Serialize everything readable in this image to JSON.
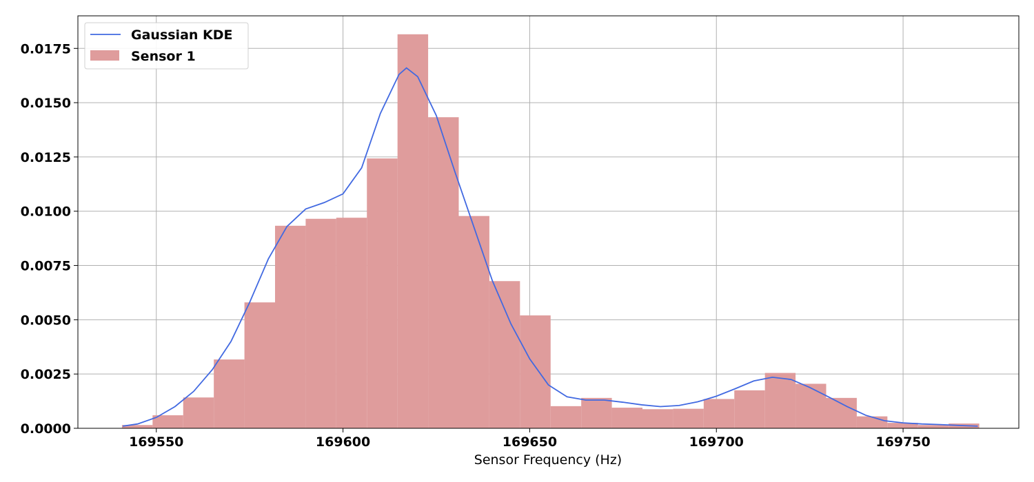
{
  "chart_data": {
    "type": "bar",
    "title": "",
    "xlabel": "Sensor Frequency (Hz)",
    "ylabel": "",
    "xlim": [
      169529,
      169781
    ],
    "ylim": [
      0,
      0.019
    ],
    "grid": true,
    "legend_position": "top-left",
    "x_ticks": [
      169550,
      169600,
      169650,
      169700,
      169750
    ],
    "x_tick_labels": [
      "169550",
      "169600",
      "169650",
      "169700",
      "169750"
    ],
    "y_ticks": [
      0,
      0.0025,
      0.005,
      0.0075,
      0.01,
      0.0125,
      0.015,
      0.0175
    ],
    "y_tick_labels": [
      "0.0000",
      "0.0025",
      "0.0050",
      "0.0075",
      "0.0100",
      "0.0125",
      "0.0150",
      "0.0175"
    ],
    "histogram": {
      "name": "Sensor 1",
      "color": "#df9c9c",
      "bin_edges": [
        169540.8,
        169549.0,
        169557.2,
        169565.4,
        169573.6,
        169581.8,
        169590.0,
        169598.2,
        169606.4,
        169614.6,
        169622.8,
        169631.0,
        169639.2,
        169647.4,
        169655.6,
        169663.8,
        169672.0,
        169680.2,
        169688.4,
        169696.6,
        169704.8,
        169713.0,
        169721.2,
        169729.4,
        169737.6,
        169745.8,
        169754.0,
        169762.2,
        169770.4
      ],
      "values": [
        0.00015,
        0.0006,
        0.00142,
        0.00317,
        0.0058,
        0.00933,
        0.00965,
        0.0097,
        0.01243,
        0.01815,
        0.01433,
        0.00978,
        0.00678,
        0.0052,
        0.00102,
        0.0014,
        0.00095,
        0.00088,
        0.0009,
        0.00135,
        0.00175,
        0.00255,
        0.00205,
        0.0014,
        0.00055,
        0.00025,
        0.00015,
        0.00022
      ]
    },
    "kde": {
      "name": "Gaussian KDE",
      "color": "#4169e1",
      "x": [
        169541,
        169545,
        169550,
        169555,
        169560,
        169565,
        169570,
        169575,
        169580,
        169585,
        169590,
        169595,
        169600,
        169605,
        169610,
        169615,
        169617,
        169620,
        169625,
        169630,
        169635,
        169640,
        169645,
        169650,
        169655,
        169660,
        169665,
        169670,
        169675,
        169680,
        169685,
        169690,
        169695,
        169700,
        169705,
        169710,
        169715,
        169720,
        169725,
        169730,
        169735,
        169740,
        169745,
        169750,
        169755,
        169760,
        169765,
        169770
      ],
      "y": [
        0.0001,
        0.0002,
        0.0005,
        0.001,
        0.0017,
        0.0027,
        0.004,
        0.0058,
        0.0078,
        0.0093,
        0.0101,
        0.0104,
        0.0108,
        0.012,
        0.0145,
        0.0163,
        0.0166,
        0.0162,
        0.0144,
        0.0118,
        0.0093,
        0.0068,
        0.0048,
        0.0032,
        0.002,
        0.00145,
        0.0013,
        0.0013,
        0.0012,
        0.00108,
        0.001,
        0.00105,
        0.00122,
        0.00148,
        0.00182,
        0.00218,
        0.00235,
        0.00225,
        0.00188,
        0.00145,
        0.001,
        0.0006,
        0.00035,
        0.00025,
        0.0002,
        0.00017,
        0.00013,
        0.0001
      ]
    }
  }
}
